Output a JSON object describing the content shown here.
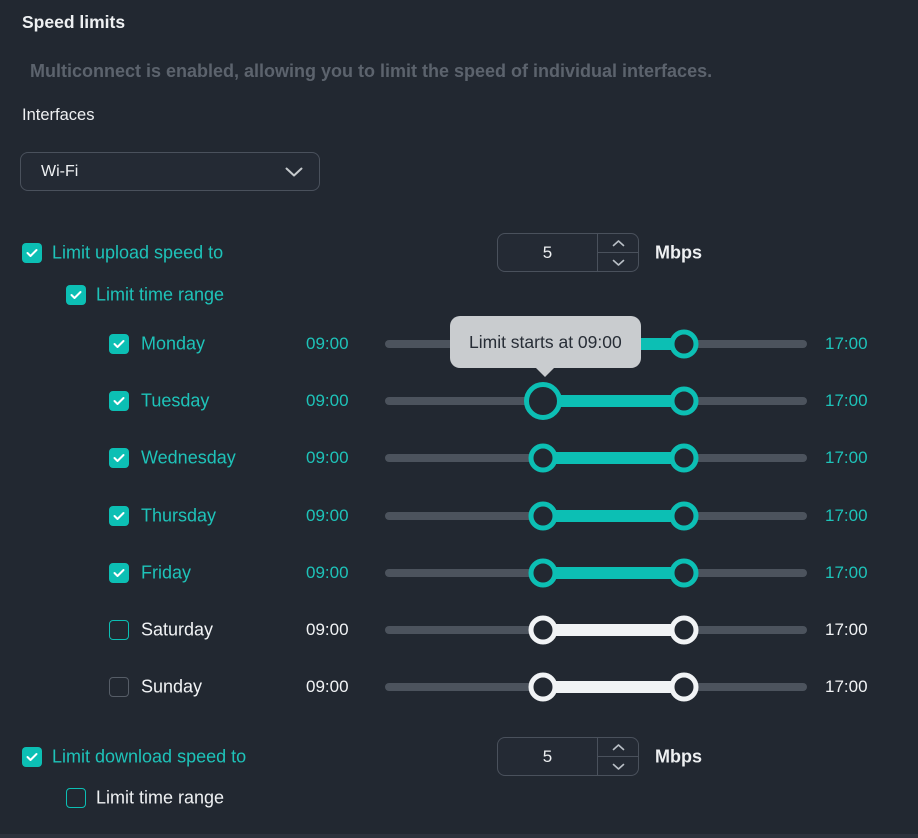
{
  "colors": {
    "bg": "#222831",
    "fg": "#eef0f2",
    "muted": "#5c636d",
    "accent": "#0cbfb4",
    "accent_text": "#1ec3b9",
    "track": "#4c535d",
    "white_el": "#f1f3f5",
    "border": "#4a515c",
    "panel": "#242a34",
    "tooltip_bg": "#c9cccf",
    "tooltip_fg": "#272d36"
  },
  "header": {
    "title": "Speed limits",
    "note": "Multiconnect is enabled, allowing you to limit the speed of individual interfaces."
  },
  "interfaces": {
    "label": "Interfaces",
    "selected": "Wi-Fi"
  },
  "upload": {
    "label": "Limit upload speed to",
    "checkbox": "checked",
    "value": "5",
    "unit": "Mbps",
    "time_range": {
      "label": "Limit time range",
      "checkbox": "checked"
    }
  },
  "days": [
    {
      "label": "Monday",
      "start": "09:00",
      "end": "17:00",
      "checked": true,
      "checkbox": "checked",
      "start_pct": 37.5,
      "end_pct": 70.8
    },
    {
      "label": "Tuesday",
      "start": "09:00",
      "end": "17:00",
      "checked": true,
      "checkbox": "checked",
      "start_pct": 37.5,
      "end_pct": 70.8,
      "start_handle_hovered": true
    },
    {
      "label": "Wednesday",
      "start": "09:00",
      "end": "17:00",
      "checked": true,
      "checkbox": "checked",
      "start_pct": 37.5,
      "end_pct": 70.8
    },
    {
      "label": "Thursday",
      "start": "09:00",
      "end": "17:00",
      "checked": true,
      "checkbox": "checked",
      "start_pct": 37.5,
      "end_pct": 70.8
    },
    {
      "label": "Friday",
      "start": "09:00",
      "end": "17:00",
      "checked": true,
      "checkbox": "checked",
      "start_pct": 37.5,
      "end_pct": 70.8
    },
    {
      "label": "Saturday",
      "start": "09:00",
      "end": "17:00",
      "checked": false,
      "checkbox": "unchecked-accent",
      "start_pct": 37.5,
      "end_pct": 70.8
    },
    {
      "label": "Sunday",
      "start": "09:00",
      "end": "17:00",
      "checked": false,
      "checkbox": "unchecked-gray",
      "start_pct": 37.5,
      "end_pct": 70.8
    }
  ],
  "tooltip": {
    "text": "Limit starts at 09:00"
  },
  "download": {
    "label": "Limit download speed to",
    "checkbox": "checked",
    "value": "5",
    "unit": "Mbps",
    "time_range": {
      "label": "Limit time range",
      "checkbox": "unchecked-accent"
    }
  }
}
